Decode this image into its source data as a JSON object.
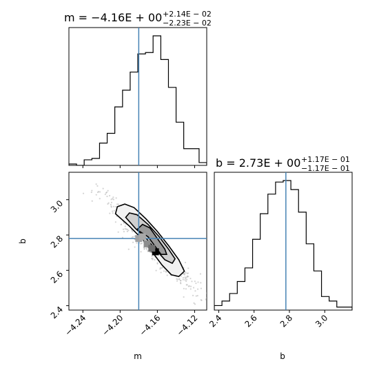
{
  "chart_data": {
    "type": "corner",
    "parameters": [
      "m",
      "b"
    ],
    "truths": {
      "m": -4.18,
      "b": 2.78
    },
    "colors": {
      "truth": "#4682b4",
      "hist": "#000000",
      "scatter": "#b0b0b0"
    },
    "panels": {
      "m_hist": {
        "type": "histogram",
        "title_main": "m = −4.16E + 00",
        "title_sup": "+2.14E − 02",
        "title_sub": "−2.23E − 02",
        "xlim": [
          -4.255,
          -4.107
        ],
        "bin_edges": [
          -4.255,
          -4.2468,
          -4.2386,
          -4.2303,
          -4.2221,
          -4.2139,
          -4.2057,
          -4.1974,
          -4.1892,
          -4.181,
          -4.1728,
          -4.1646,
          -4.1563,
          -4.1481,
          -4.1399,
          -4.1317,
          -4.1234,
          -4.1152,
          -4.107
        ],
        "counts": [
          0.01,
          0.0,
          0.04,
          0.05,
          0.16,
          0.23,
          0.42,
          0.54,
          0.67,
          0.8,
          0.81,
          0.93,
          0.76,
          0.56,
          0.31,
          0.12,
          0.12,
          0.02
        ]
      },
      "b_hist": {
        "type": "histogram",
        "title_main": "b = 2.73E + 00",
        "title_sup": "+1.17E − 01",
        "title_sub": "−1.17E − 01",
        "xlim": [
          2.375,
          3.155
        ],
        "bin_edges": [
          2.375,
          2.4183,
          2.4617,
          2.505,
          2.5483,
          2.5917,
          2.635,
          2.6783,
          2.7217,
          2.765,
          2.8083,
          2.8517,
          2.895,
          2.9383,
          2.9817,
          3.025,
          3.0683,
          3.1117,
          3.155
        ],
        "counts": [
          0.03,
          0.06,
          0.11,
          0.19,
          0.28,
          0.47,
          0.64,
          0.77,
          0.85,
          0.86,
          0.8,
          0.65,
          0.44,
          0.26,
          0.09,
          0.06,
          0.02,
          0.02
        ]
      },
      "joint": {
        "type": "contour",
        "xlim": [
          -4.255,
          -4.107
        ],
        "ylim": [
          2.375,
          3.155
        ],
        "contours": [
          [
            [
              -4.205,
              2.92
            ],
            [
              -4.203,
              2.96
            ],
            [
              -4.195,
              2.975
            ],
            [
              -4.185,
              2.955
            ],
            [
              -4.172,
              2.89
            ],
            [
              -4.16,
              2.82
            ],
            [
              -4.148,
              2.74
            ],
            [
              -4.137,
              2.66
            ],
            [
              -4.131,
              2.595
            ],
            [
              -4.137,
              2.565
            ],
            [
              -4.145,
              2.575
            ],
            [
              -4.155,
              2.63
            ],
            [
              -4.165,
              2.7
            ],
            [
              -4.175,
              2.77
            ],
            [
              -4.19,
              2.85
            ]
          ],
          [
            [
              -4.194,
              2.9
            ],
            [
              -4.19,
              2.925
            ],
            [
              -4.182,
              2.915
            ],
            [
              -4.17,
              2.86
            ],
            [
              -4.158,
              2.79
            ],
            [
              -4.148,
              2.72
            ],
            [
              -4.141,
              2.665
            ],
            [
              -4.144,
              2.64
            ],
            [
              -4.152,
              2.66
            ],
            [
              -4.162,
              2.72
            ],
            [
              -4.172,
              2.78
            ],
            [
              -4.184,
              2.84
            ]
          ],
          [
            [
              -4.182,
              2.83
            ],
            [
              -4.176,
              2.86
            ],
            [
              -4.168,
              2.84
            ],
            [
              -4.16,
              2.78
            ],
            [
              -4.152,
              2.72
            ],
            [
              -4.15,
              2.69
            ],
            [
              -4.156,
              2.69
            ],
            [
              -4.163,
              2.74
            ],
            [
              -4.17,
              2.79
            ]
          ]
        ],
        "density_cells": [
          {
            "x": -4.18,
            "y": 2.78,
            "shade": "#9fa0a2"
          },
          {
            "x": -4.171,
            "y": 2.75,
            "shade": "#8c8c8c"
          },
          {
            "x": -4.162,
            "y": 2.705,
            "shade": "#000000"
          },
          {
            "x": -4.166,
            "y": 2.725,
            "shade": "#6e6e6e"
          },
          {
            "x": -4.176,
            "y": 2.79,
            "shade": "#a8a8a8"
          }
        ]
      }
    },
    "axes": {
      "m": {
        "label": "m",
        "ticks": [
          -4.24,
          -4.2,
          -4.16,
          -4.12
        ],
        "tick_labels": [
          "−4.24",
          "−4.20",
          "−4.16",
          "−4.12"
        ]
      },
      "b": {
        "label": "b",
        "ticks": [
          2.4,
          2.6,
          2.8,
          3.0
        ],
        "tick_labels": [
          "2.4",
          "2.6",
          "2.8",
          "3.0"
        ]
      }
    }
  }
}
